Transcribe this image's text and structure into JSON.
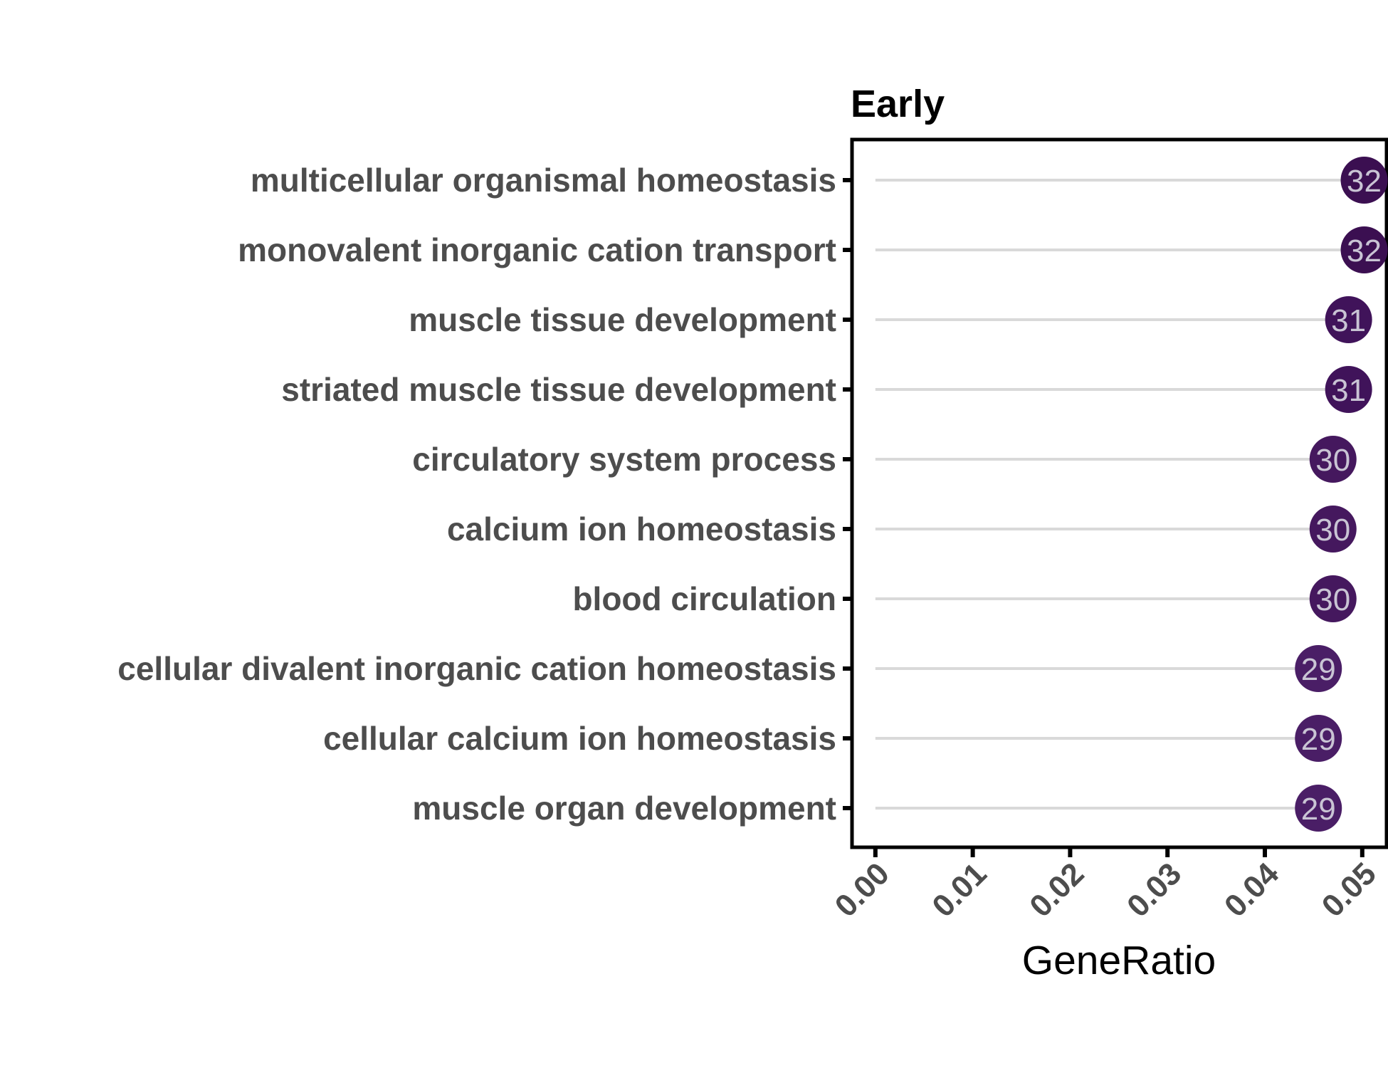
{
  "chart_data": {
    "type": "scatter",
    "title": "Early",
    "xlabel": "GeneRatio",
    "ylabel": "",
    "xlim": [
      -0.0024,
      0.0525
    ],
    "x_ticks": [
      "0.00",
      "0.01",
      "0.02",
      "0.03",
      "0.04",
      "0.05"
    ],
    "x_tick_values": [
      0.0,
      0.01,
      0.02,
      0.03,
      0.04,
      0.05
    ],
    "grid": false,
    "segment_color": "#d9d9d9",
    "categories": [
      "multicellular organismal homeostasis",
      "monovalent inorganic cation transport",
      "muscle tissue development",
      "striated muscle tissue development",
      "circulatory system process",
      "calcium ion homeostasis",
      "blood circulation",
      "cellular divalent inorganic cation homeostasis",
      "cellular calcium ion homeostasis",
      "muscle organ development"
    ],
    "x": [
      0.0502,
      0.0502,
      0.0486,
      0.0486,
      0.047,
      0.047,
      0.047,
      0.0455,
      0.0455,
      0.0455
    ],
    "counts": [
      32,
      32,
      31,
      31,
      30,
      30,
      30,
      29,
      29,
      29
    ],
    "count_labels": [
      "32",
      "32",
      "31",
      "31",
      "30",
      "30",
      "30",
      "29",
      "29",
      "29"
    ],
    "point_colors": [
      "#3b0f51",
      "#3b0f51",
      "#40135a",
      "#40135a",
      "#45185e",
      "#45185e",
      "#45185e",
      "#4a1e66",
      "#4a1e66",
      "#4a1e66"
    ]
  }
}
